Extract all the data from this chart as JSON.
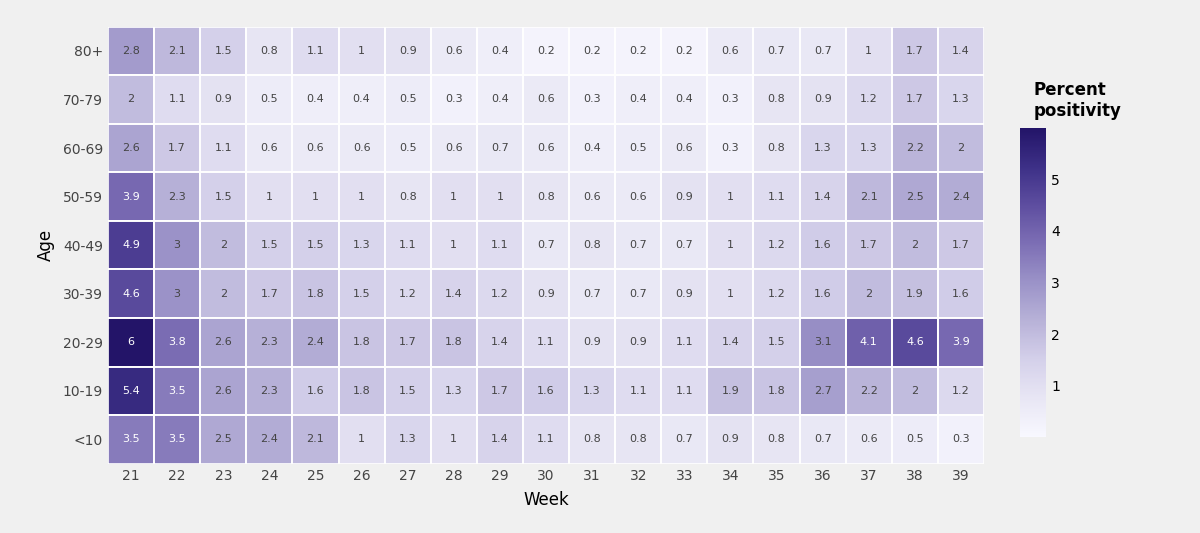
{
  "age_groups": [
    "80+",
    "70-79",
    "60-69",
    "50-59",
    "40-49",
    "30-39",
    "20-29",
    "10-19",
    "<10"
  ],
  "weeks": [
    21,
    22,
    23,
    24,
    25,
    26,
    27,
    28,
    29,
    30,
    31,
    32,
    33,
    34,
    35,
    36,
    37,
    38,
    39
  ],
  "data": {
    "80+": [
      2.8,
      2.1,
      1.5,
      0.8,
      1.1,
      1.0,
      0.9,
      0.6,
      0.4,
      0.2,
      0.2,
      0.2,
      0.2,
      0.6,
      0.7,
      0.7,
      1.0,
      1.7,
      1.4
    ],
    "70-79": [
      2.0,
      1.1,
      0.9,
      0.5,
      0.4,
      0.4,
      0.5,
      0.3,
      0.4,
      0.6,
      0.3,
      0.4,
      0.4,
      0.3,
      0.8,
      0.9,
      1.2,
      1.7,
      1.3
    ],
    "60-69": [
      2.6,
      1.7,
      1.1,
      0.6,
      0.6,
      0.6,
      0.5,
      0.6,
      0.7,
      0.6,
      0.4,
      0.5,
      0.6,
      0.3,
      0.8,
      1.3,
      1.3,
      2.2,
      2.0
    ],
    "50-59": [
      3.9,
      2.3,
      1.5,
      1.0,
      1.0,
      1.0,
      0.8,
      1.0,
      1.0,
      0.8,
      0.6,
      0.6,
      0.9,
      1.0,
      1.1,
      1.4,
      2.1,
      2.5,
      2.4
    ],
    "40-49": [
      4.9,
      3.0,
      2.0,
      1.5,
      1.5,
      1.3,
      1.1,
      1.0,
      1.1,
      0.7,
      0.8,
      0.7,
      0.7,
      1.0,
      1.2,
      1.6,
      1.7,
      2.0,
      1.7
    ],
    "30-39": [
      4.6,
      3.0,
      2.0,
      1.7,
      1.8,
      1.5,
      1.2,
      1.4,
      1.2,
      0.9,
      0.7,
      0.7,
      0.9,
      1.0,
      1.2,
      1.6,
      2.0,
      1.9,
      1.6
    ],
    "20-29": [
      6.0,
      3.8,
      2.6,
      2.3,
      2.4,
      1.8,
      1.7,
      1.8,
      1.4,
      1.1,
      0.9,
      0.9,
      1.1,
      1.4,
      1.5,
      3.1,
      4.1,
      4.6,
      3.9
    ],
    "10-19": [
      5.4,
      3.5,
      2.6,
      2.3,
      1.6,
      1.8,
      1.5,
      1.3,
      1.7,
      1.6,
      1.3,
      1.1,
      1.1,
      1.9,
      1.8,
      2.7,
      2.2,
      2.0,
      1.2
    ],
    "<10": [
      3.5,
      3.5,
      2.5,
      2.4,
      2.1,
      1.0,
      1.3,
      1.0,
      1.4,
      1.1,
      0.8,
      0.8,
      0.7,
      0.9,
      0.8,
      0.7,
      0.6,
      0.5,
      0.3
    ]
  },
  "xlabel": "Week",
  "ylabel": "Age",
  "colorbar_label": "Percent\npositivity",
  "vmin": 0,
  "vmax": 6,
  "colorbar_ticks": [
    1,
    2,
    3,
    4,
    5
  ],
  "colorbar_ticklabels": [
    "1",
    "2",
    "3",
    "4",
    "5"
  ],
  "cmap_colors": [
    "#f7f7fb",
    "#e0dff0",
    "#c8c6e0",
    "#a9a5cb",
    "#8b83bb",
    "#6d5faa",
    "#4f3d96",
    "#2d1e7e",
    "#1a0a5c"
  ],
  "background_color": "#f0f0f0",
  "cell_bg_color": "#ffffff",
  "text_color": "#444444",
  "cell_text_fontsize": 8,
  "axis_label_fontsize": 12,
  "tick_fontsize": 10,
  "colorbar_label_fontsize": 12
}
